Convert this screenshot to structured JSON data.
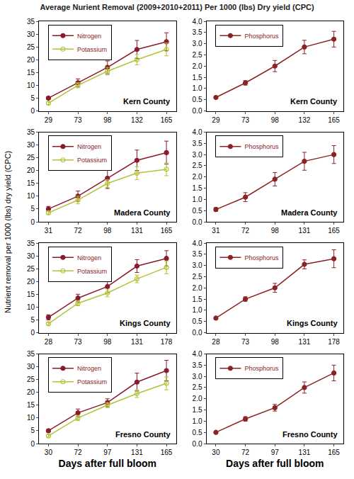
{
  "title": "Average Nurient Removal (2009+2010+2011) Per 1000 (lbs) Dry yield (CPC)",
  "ylabel": "Nutrient removal per 1000 (lbs) dry yield (CPC)",
  "chart_data": [
    {
      "type": "line",
      "annotation": "Kern County",
      "legend": "upper left",
      "grid": false,
      "categories": [
        "29",
        "73",
        "98",
        "132",
        "165"
      ],
      "ylim": [
        0,
        35
      ],
      "yticks": [
        0,
        5,
        10,
        15,
        20,
        25,
        30,
        35
      ],
      "series": [
        {
          "name": "Nitrogen",
          "color": "#8b1a2b",
          "marker": "circle",
          "line_style": "solid",
          "values": [
            5,
            11,
            17,
            24,
            27
          ],
          "errors": [
            0.5,
            1.5,
            2.5,
            3.5,
            3.5
          ]
        },
        {
          "name": "Potassium",
          "color": "#b3c236",
          "marker": "circle-open",
          "line_style": "solid",
          "values": [
            3,
            10,
            15.5,
            20,
            24
          ],
          "errors": [
            0.5,
            1,
            1.5,
            2,
            2.5
          ]
        }
      ]
    },
    {
      "type": "line",
      "annotation": "Kern County",
      "legend": "upper left",
      "grid": false,
      "categories": [
        "29",
        "73",
        "98",
        "132",
        "165"
      ],
      "ylim": [
        0,
        4
      ],
      "yticks": [
        {
          "value": 0,
          "label": "0.0"
        },
        {
          "value": 0.5,
          "label": "0.5"
        },
        {
          "value": 1,
          "label": "1.0"
        },
        {
          "value": 1.5,
          "label": "1.5"
        },
        {
          "value": 2,
          "label": "2.0"
        },
        {
          "value": 2.5,
          "label": "2.5"
        },
        {
          "value": 3,
          "label": "3.0"
        },
        {
          "value": 3.5,
          "label": "3.5"
        },
        {
          "value": 4,
          "label": "4.0"
        }
      ],
      "series": [
        {
          "name": "Phosphorus",
          "color": "#8b2323",
          "marker": "circle",
          "line_style": "solid",
          "values": [
            0.6,
            1.25,
            2.0,
            2.85,
            3.2
          ],
          "errors": [
            0.05,
            0.1,
            0.25,
            0.3,
            0.35
          ]
        }
      ]
    },
    {
      "type": "line",
      "annotation": "Madera County",
      "legend": "upper left",
      "grid": false,
      "categories": [
        "31",
        "72",
        "98",
        "131",
        "165"
      ],
      "ylim": [
        0,
        35
      ],
      "yticks": [
        0,
        5,
        10,
        15,
        20,
        25,
        30,
        35
      ],
      "series": [
        {
          "name": "Nitrogen",
          "color": "#8b1a2b",
          "marker": "circle",
          "line_style": "solid",
          "values": [
            5,
            10,
            17,
            24,
            27
          ],
          "errors": [
            1,
            2,
            4,
            4,
            4.5
          ]
        },
        {
          "name": "Potassium",
          "color": "#b3c236",
          "marker": "circle-open",
          "line_style": "solid",
          "values": [
            3.5,
            8.5,
            15,
            19,
            20.5
          ],
          "errors": [
            0.5,
            1.5,
            1.5,
            2.5,
            2.5
          ]
        }
      ]
    },
    {
      "type": "line",
      "annotation": "Madera County",
      "legend": "upper left",
      "grid": false,
      "categories": [
        "31",
        "72",
        "98",
        "131",
        "165"
      ],
      "ylim": [
        0,
        4
      ],
      "yticks": [
        {
          "value": 0,
          "label": "0.0"
        },
        {
          "value": 0.5,
          "label": "0.5"
        },
        {
          "value": 1,
          "label": "1.0"
        },
        {
          "value": 1.5,
          "label": "1.5"
        },
        {
          "value": 2,
          "label": "2.0"
        },
        {
          "value": 2.5,
          "label": "2.5"
        },
        {
          "value": 3,
          "label": "3.0"
        },
        {
          "value": 3.5,
          "label": "3.5"
        },
        {
          "value": 4,
          "label": "4.0"
        }
      ],
      "series": [
        {
          "name": "Phosphorus",
          "color": "#8b2323",
          "marker": "circle",
          "line_style": "solid",
          "values": [
            0.55,
            1.1,
            1.9,
            2.7,
            3.0
          ],
          "errors": [
            0.08,
            0.2,
            0.3,
            0.4,
            0.4
          ]
        }
      ]
    },
    {
      "type": "line",
      "annotation": "Kings County",
      "legend": "upper left",
      "grid": false,
      "categories": [
        "28",
        "73",
        "98",
        "131",
        "178"
      ],
      "ylim": [
        0,
        35
      ],
      "yticks": [
        0,
        5,
        10,
        15,
        20,
        25,
        30,
        35
      ],
      "series": [
        {
          "name": "Nitrogen",
          "color": "#8b1a2b",
          "marker": "circle",
          "line_style": "solid",
          "values": [
            6,
            13.5,
            18,
            26,
            29
          ],
          "errors": [
            1,
            1.5,
            2.5,
            2.5,
            3
          ]
        },
        {
          "name": "Potassium",
          "color": "#b3c236",
          "marker": "circle-open",
          "line_style": "solid",
          "values": [
            3.5,
            11.5,
            15.5,
            21,
            25.5
          ],
          "errors": [
            0.5,
            1,
            1.5,
            1.5,
            2.5
          ]
        }
      ]
    },
    {
      "type": "line",
      "annotation": "Kings County",
      "legend": "upper left",
      "grid": false,
      "categories": [
        "28",
        "73",
        "98",
        "131",
        "178"
      ],
      "ylim": [
        0,
        4
      ],
      "yticks": [
        {
          "value": 0,
          "label": "0.0"
        },
        {
          "value": 0.5,
          "label": "0.5"
        },
        {
          "value": 1,
          "label": "1.0"
        },
        {
          "value": 1.5,
          "label": "1.5"
        },
        {
          "value": 2,
          "label": "2.0"
        },
        {
          "value": 2.5,
          "label": "2.5"
        },
        {
          "value": 3,
          "label": "3.0"
        },
        {
          "value": 3.5,
          "label": "3.5"
        },
        {
          "value": 4,
          "label": "4.0"
        }
      ],
      "series": [
        {
          "name": "Phosphorus",
          "color": "#8b2323",
          "marker": "circle",
          "line_style": "solid",
          "values": [
            0.65,
            1.5,
            2.0,
            3.05,
            3.3
          ],
          "errors": [
            0.05,
            0.1,
            0.2,
            0.2,
            0.4
          ]
        }
      ]
    },
    {
      "type": "line",
      "annotation": "Fresno County",
      "legend": "upper left",
      "grid": false,
      "categories": [
        "30",
        "72",
        "97",
        "131",
        "165"
      ],
      "ylim": [
        0,
        35
      ],
      "yticks": [
        0,
        5,
        10,
        15,
        20,
        25,
        30,
        35
      ],
      "xlabel": "Days after full bloom",
      "series": [
        {
          "name": "Nitrogen",
          "color": "#8b1a2b",
          "marker": "circle",
          "line_style": "solid",
          "values": [
            5,
            12,
            16,
            24,
            28.5
          ],
          "errors": [
            0.5,
            1.5,
            1.5,
            3.5,
            4
          ]
        },
        {
          "name": "Potassium",
          "color": "#b3c236",
          "marker": "circle-open",
          "line_style": "solid",
          "values": [
            3,
            10,
            15,
            19.5,
            23.5
          ],
          "errors": [
            0.5,
            1,
            1,
            1.5,
            2.5
          ]
        }
      ]
    },
    {
      "type": "line",
      "annotation": "Fresno County",
      "legend": "upper left",
      "grid": false,
      "categories": [
        "30",
        "72",
        "97",
        "131",
        "165"
      ],
      "ylim": [
        0,
        4
      ],
      "yticks": [
        {
          "value": 0,
          "label": "0.0"
        },
        {
          "value": 0.5,
          "label": "0.5"
        },
        {
          "value": 1,
          "label": "1.0"
        },
        {
          "value": 1.5,
          "label": "1.5"
        },
        {
          "value": 2,
          "label": "2.0"
        },
        {
          "value": 2.5,
          "label": "2.5"
        },
        {
          "value": 3,
          "label": "3.0"
        },
        {
          "value": 3.5,
          "label": "3.5"
        },
        {
          "value": 4,
          "label": "4.0"
        }
      ],
      "xlabel": "Days after full bloom",
      "series": [
        {
          "name": "Phosphorus",
          "color": "#8b2323",
          "marker": "circle",
          "line_style": "solid",
          "values": [
            0.5,
            1.1,
            1.6,
            2.5,
            3.15
          ],
          "errors": [
            0.03,
            0.1,
            0.15,
            0.25,
            0.35
          ]
        }
      ]
    }
  ]
}
